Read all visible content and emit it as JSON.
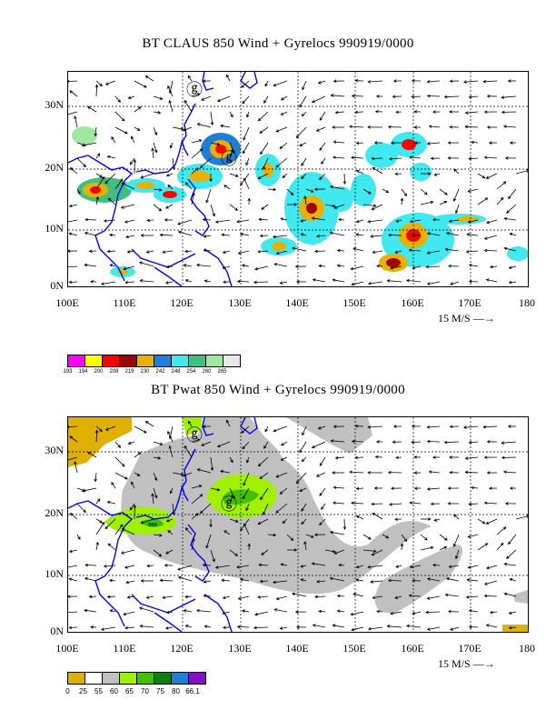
{
  "panels": [
    {
      "title": "BT CLAUS 850 Wind + Gyrelocs 990919/0000",
      "y_ticks": [
        "30N",
        "20N",
        "10N",
        "0N"
      ],
      "x_ticks": [
        "100E",
        "110E",
        "120E",
        "130E",
        "140E",
        "150E",
        "160E",
        "170E",
        "180"
      ],
      "scale_label": "15 M/S",
      "storm_symbols": [
        {
          "lon": 121.5,
          "lat": 33
        },
        {
          "lon": 127,
          "lat": 21
        }
      ],
      "legend_values": [
        "193",
        "194",
        "200",
        "208",
        "219",
        "230",
        "242",
        "248",
        "254",
        "260",
        "265"
      ],
      "legend_colors": [
        "#ff00ff",
        "#ffff00",
        "#ff0000",
        "#a00000",
        "#e8b000",
        "#1e7ed8",
        "#40e8f0",
        "#40c080",
        "#a0e8a0",
        "#e8e8e8"
      ]
    },
    {
      "title": "BT Pwat 850 Wind + Gyrelocs 990919/0000",
      "y_ticks": [
        "30N",
        "20N",
        "10N",
        "0N"
      ],
      "x_ticks": [
        "100E",
        "110E",
        "120E",
        "130E",
        "140E",
        "150E",
        "160E",
        "170E",
        "180"
      ],
      "scale_label": "15 M/S",
      "storm_symbols": [
        {
          "lon": 121.5,
          "lat": 33
        },
        {
          "lon": 127,
          "lat": 21
        }
      ],
      "legend_values": [
        "0",
        "25",
        "55",
        "60",
        "65",
        "70",
        "75",
        "80",
        "66.1"
      ],
      "legend_colors": [
        "#e0b000",
        "#ffffff",
        "#c0c0c0",
        "#a0f000",
        "#40c000",
        "#108010",
        "#2080d0",
        "#8010c0"
      ]
    }
  ]
}
